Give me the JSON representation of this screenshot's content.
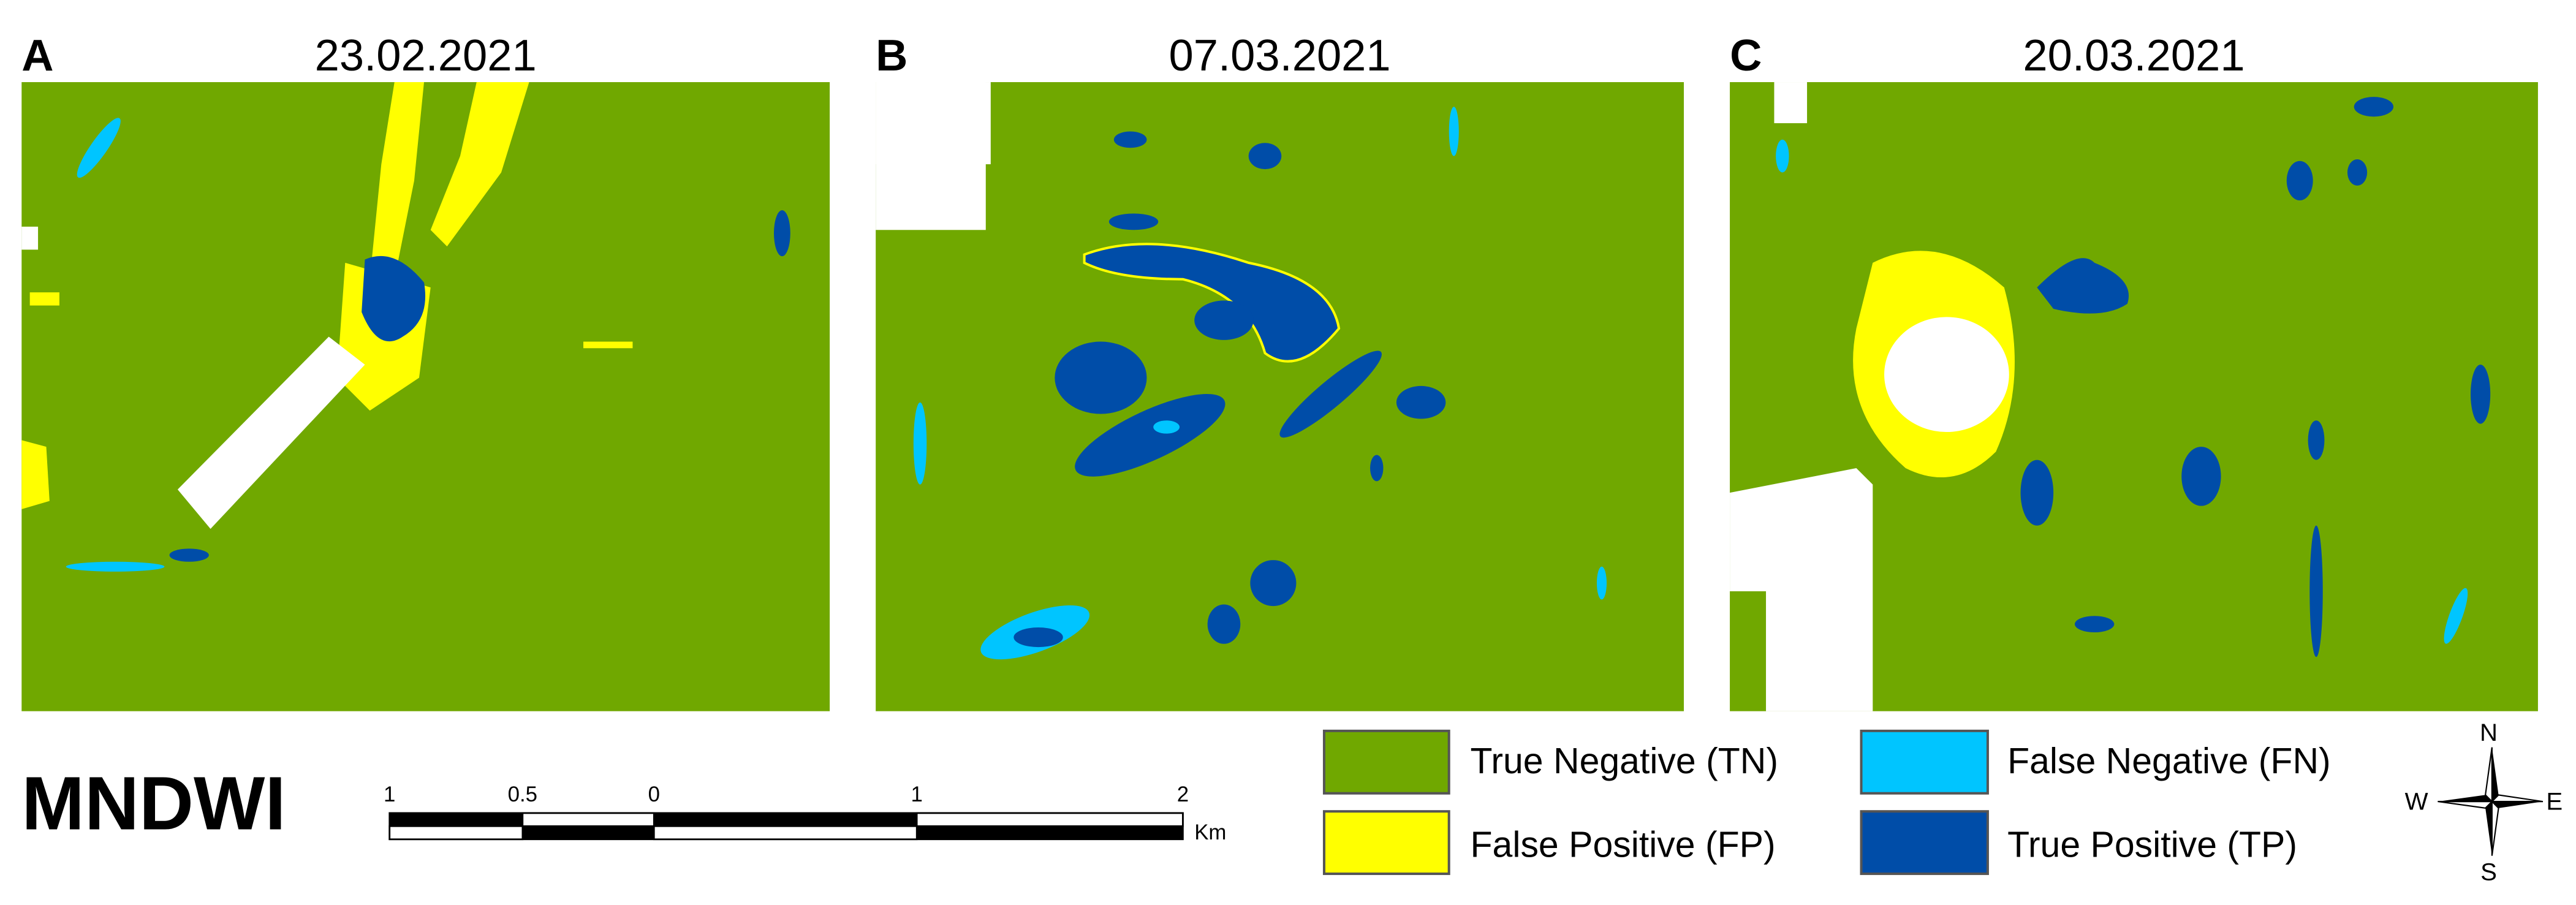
{
  "panels": [
    {
      "letter": "A",
      "date": "23.02.2021"
    },
    {
      "letter": "B",
      "date": "07.03.2021"
    },
    {
      "letter": "C",
      "date": "20.03.2021"
    }
  ],
  "index_name": "MNDWI",
  "legend": [
    {
      "label": "True Negative (TN)",
      "color": "#70a800"
    },
    {
      "label": "False Negative (FN)",
      "color": "#00c5ff"
    },
    {
      "label": "False Positive (FP)",
      "color": "#ffff00"
    },
    {
      "label": "True Positive (TP)",
      "color": "#004da8"
    }
  ],
  "scale_bar": {
    "ticks": [
      "1",
      "0.5",
      "0",
      "1",
      "2"
    ],
    "unit": "Km"
  },
  "compass": {
    "north": "N",
    "west": "W",
    "east": "E",
    "south": "S"
  }
}
